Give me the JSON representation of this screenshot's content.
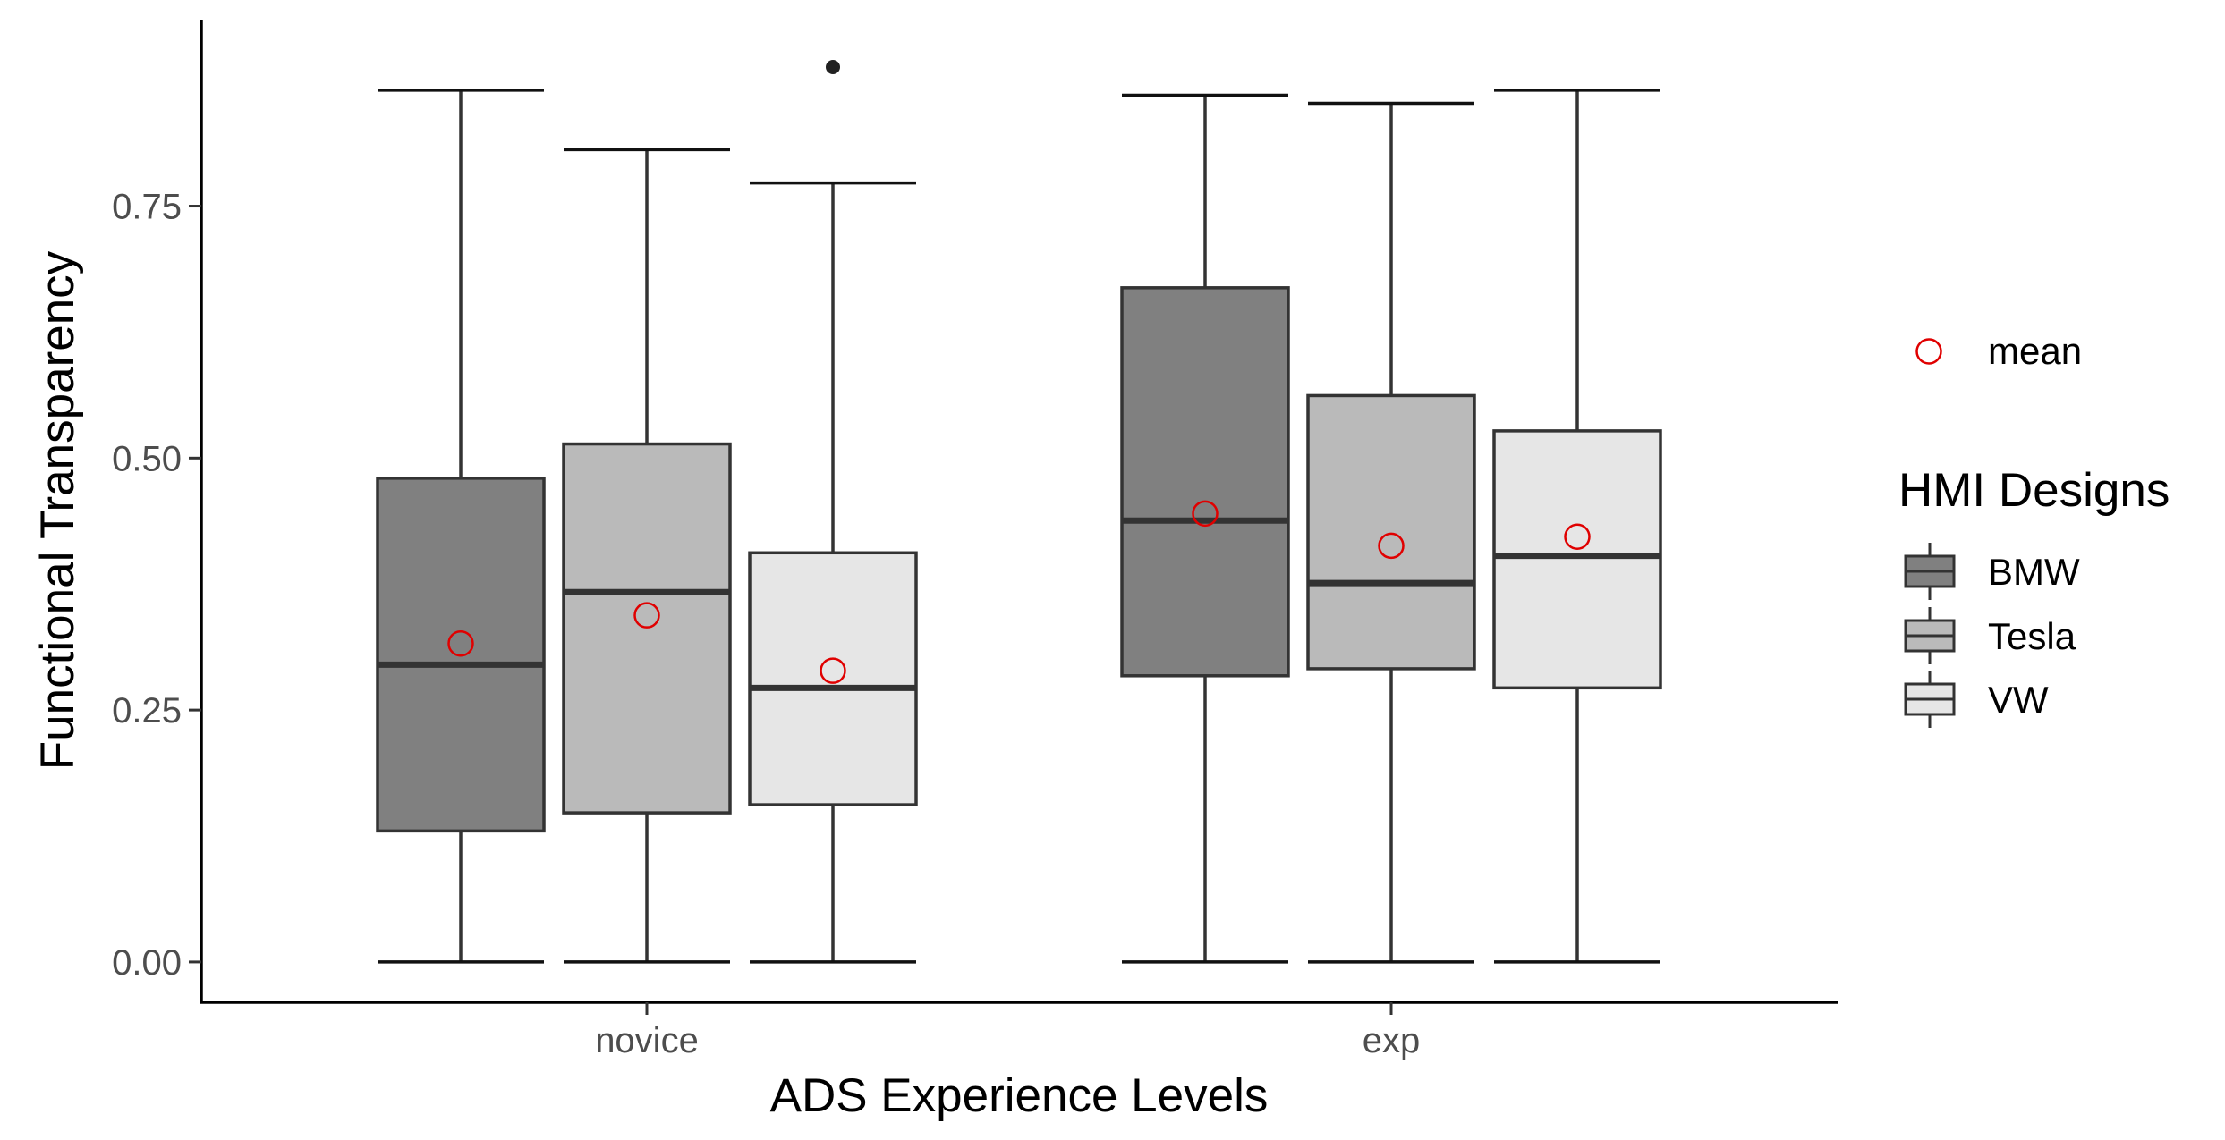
{
  "chart_data": {
    "type": "boxplot",
    "title": "",
    "xlabel": "ADS Experience Levels",
    "ylabel": "Functional Transparency",
    "categories": [
      "novice",
      "exp"
    ],
    "ylim": [
      -0.04,
      0.935
    ],
    "yticks": [
      0.0,
      0.25,
      0.5,
      0.75
    ],
    "ytick_labels": [
      "0.00",
      "0.25",
      "0.50",
      "0.75"
    ],
    "grid": false,
    "legend": {
      "placement": "right",
      "mean_label": "mean",
      "mean_color": "#e00000",
      "title": "HMI Designs",
      "entries": [
        "BMW",
        "Tesla",
        "VW"
      ]
    },
    "series": [
      {
        "name": "BMW",
        "color": "#808080",
        "boxes": [
          {
            "category": "novice",
            "min": 0.0,
            "q1": 0.13,
            "median": 0.295,
            "q3": 0.48,
            "max": 0.865,
            "mean": 0.316,
            "outliers": []
          },
          {
            "category": "exp",
            "min": 0.0,
            "q1": 0.284,
            "median": 0.438,
            "q3": 0.669,
            "max": 0.86,
            "mean": 0.445,
            "outliers": []
          }
        ]
      },
      {
        "name": "Tesla",
        "color": "#bababa",
        "boxes": [
          {
            "category": "novice",
            "min": 0.0,
            "q1": 0.148,
            "median": 0.367,
            "q3": 0.514,
            "max": 0.806,
            "mean": 0.344,
            "outliers": []
          },
          {
            "category": "exp",
            "min": 0.0,
            "q1": 0.291,
            "median": 0.376,
            "q3": 0.562,
            "max": 0.852,
            "mean": 0.413,
            "outliers": []
          }
        ]
      },
      {
        "name": "VW",
        "color": "#e6e6e6",
        "boxes": [
          {
            "category": "novice",
            "min": 0.0,
            "q1": 0.156,
            "median": 0.272,
            "q3": 0.406,
            "max": 0.773,
            "mean": 0.289,
            "outliers": [
              0.888
            ]
          },
          {
            "category": "exp",
            "min": 0.0,
            "q1": 0.272,
            "median": 0.403,
            "q3": 0.527,
            "max": 0.865,
            "mean": 0.422,
            "outliers": []
          }
        ]
      }
    ]
  }
}
